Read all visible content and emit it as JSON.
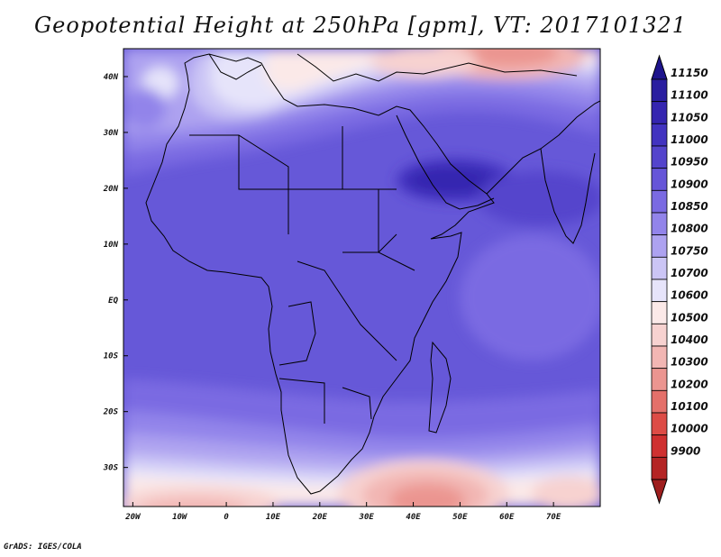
{
  "title": "Geopotential Height at 250hPa [gpm], VT: 2017101321",
  "credit": "GrADS: IGES/COLA",
  "map": {
    "lat_ticks": [
      {
        "lat": 40,
        "label": "40N"
      },
      {
        "lat": 30,
        "label": "30N"
      },
      {
        "lat": 20,
        "label": "20N"
      },
      {
        "lat": 10,
        "label": "10N"
      },
      {
        "lat": 0,
        "label": "EQ"
      },
      {
        "lat": -10,
        "label": "10S"
      },
      {
        "lat": -20,
        "label": "20S"
      },
      {
        "lat": -30,
        "label": "30S"
      }
    ],
    "lon_ticks": [
      {
        "lon": -20,
        "label": "20W"
      },
      {
        "lon": -10,
        "label": "10W"
      },
      {
        "lon": 0,
        "label": "0"
      },
      {
        "lon": 10,
        "label": "10E"
      },
      {
        "lon": 20,
        "label": "20E"
      },
      {
        "lon": 30,
        "label": "30E"
      },
      {
        "lon": 40,
        "label": "40E"
      },
      {
        "lon": 50,
        "label": "50E"
      },
      {
        "lon": 60,
        "label": "60E"
      },
      {
        "lon": 70,
        "label": "70E"
      }
    ],
    "lon_range": [
      -22,
      80
    ],
    "lat_range": [
      -37,
      45
    ]
  },
  "colorbar": {
    "levels": [
      "11150",
      "11100",
      "11050",
      "11000",
      "10950",
      "10900",
      "10850",
      "10800",
      "10750",
      "10700",
      "10600",
      "10500",
      "10400",
      "10300",
      "10200",
      "10100",
      "10000",
      "9900"
    ],
    "colors": [
      "#2a1ea0",
      "#3525b0",
      "#4233c0",
      "#5444cc",
      "#6655d8",
      "#7a6ae2",
      "#9284ea",
      "#ada2f0",
      "#cbc5f5",
      "#e6e4fa",
      "#fbe9e8",
      "#f7d2d0",
      "#f2b6b3",
      "#eb9590",
      "#e4706a",
      "#dd4c46",
      "#cf3030",
      "#b42424"
    ],
    "top_arrow_color": "#1e148c",
    "bottom_arrow_color": "#9e1e1e"
  }
}
